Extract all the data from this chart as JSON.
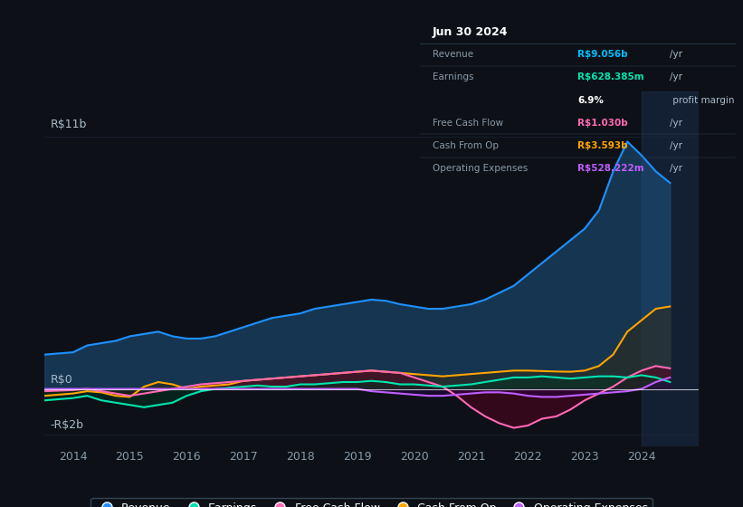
{
  "background_color": "#0d1117",
  "plot_bg_color": "#0d1117",
  "title_box": {
    "date": "Jun 30 2024",
    "display_rows": [
      {
        "label": "Revenue",
        "value": "R$9.056b",
        "unit": "/yr",
        "value_color": "#00bfff"
      },
      {
        "label": "Earnings",
        "value": "R$628.385m",
        "unit": "/yr",
        "value_color": "#00e5b0"
      },
      {
        "label": "",
        "value": "6.9%",
        "unit": " profit margin",
        "value_color": "#ffffff"
      },
      {
        "label": "Free Cash Flow",
        "value": "R$1.030b",
        "unit": "/yr",
        "value_color": "#ff69b4"
      },
      {
        "label": "Cash From Op",
        "value": "R$3.593b",
        "unit": "/yr",
        "value_color": "#ffa500"
      },
      {
        "label": "Operating Expenses",
        "value": "R$528.222m",
        "unit": "/yr",
        "value_color": "#bf5fff"
      }
    ]
  },
  "y_label_top": "R$11b",
  "y_label_zero": "R$0",
  "y_label_bottom": "-R$2b",
  "x_ticks": [
    "2014",
    "2015",
    "2016",
    "2017",
    "2018",
    "2019",
    "2020",
    "2021",
    "2022",
    "2023",
    "2024"
  ],
  "ylim": [
    -2.5,
    13.0
  ],
  "xlim": [
    2013.5,
    2025.0
  ],
  "lines": {
    "revenue": {
      "color": "#1e90ff",
      "fill_color": "#1e5a8a",
      "fill_alpha": 0.5,
      "x": [
        2013.5,
        2014.0,
        2014.25,
        2014.5,
        2014.75,
        2015.0,
        2015.25,
        2015.5,
        2015.75,
        2016.0,
        2016.25,
        2016.5,
        2016.75,
        2017.0,
        2017.25,
        2017.5,
        2017.75,
        2018.0,
        2018.25,
        2018.5,
        2018.75,
        2019.0,
        2019.25,
        2019.5,
        2019.75,
        2020.0,
        2020.25,
        2020.5,
        2020.75,
        2021.0,
        2021.25,
        2021.5,
        2021.75,
        2022.0,
        2022.25,
        2022.5,
        2022.75,
        2023.0,
        2023.25,
        2023.5,
        2023.75,
        2024.0,
        2024.25,
        2024.5
      ],
      "y": [
        1.5,
        1.6,
        1.9,
        2.0,
        2.1,
        2.3,
        2.4,
        2.5,
        2.3,
        2.2,
        2.2,
        2.3,
        2.5,
        2.7,
        2.9,
        3.1,
        3.2,
        3.3,
        3.5,
        3.6,
        3.7,
        3.8,
        3.9,
        3.85,
        3.7,
        3.6,
        3.5,
        3.5,
        3.6,
        3.7,
        3.9,
        4.2,
        4.5,
        5.0,
        5.5,
        6.0,
        6.5,
        7.0,
        7.8,
        9.5,
        10.8,
        10.2,
        9.5,
        9.0
      ]
    },
    "earnings": {
      "color": "#00e5b0",
      "fill_color": "#003322",
      "fill_alpha": 0.5,
      "x": [
        2013.5,
        2014.0,
        2014.25,
        2014.5,
        2014.75,
        2015.0,
        2015.25,
        2015.5,
        2015.75,
        2016.0,
        2016.25,
        2016.5,
        2016.75,
        2017.0,
        2017.25,
        2017.5,
        2017.75,
        2018.0,
        2018.25,
        2018.5,
        2018.75,
        2019.0,
        2019.25,
        2019.5,
        2019.75,
        2020.0,
        2020.25,
        2020.5,
        2020.75,
        2021.0,
        2021.25,
        2021.5,
        2021.75,
        2022.0,
        2022.25,
        2022.5,
        2022.75,
        2023.0,
        2023.25,
        2023.5,
        2023.75,
        2024.0,
        2024.25,
        2024.5
      ],
      "y": [
        -0.5,
        -0.4,
        -0.3,
        -0.5,
        -0.6,
        -0.7,
        -0.8,
        -0.7,
        -0.6,
        -0.3,
        -0.1,
        0.0,
        0.05,
        0.1,
        0.15,
        0.1,
        0.1,
        0.2,
        0.2,
        0.25,
        0.3,
        0.3,
        0.35,
        0.3,
        0.2,
        0.2,
        0.15,
        0.1,
        0.15,
        0.2,
        0.3,
        0.4,
        0.5,
        0.5,
        0.55,
        0.5,
        0.45,
        0.5,
        0.55,
        0.55,
        0.5,
        0.6,
        0.5,
        0.3
      ]
    },
    "free_cash_flow": {
      "color": "#ff69b4",
      "fill_color": "#5a0020",
      "fill_alpha": 0.5,
      "x": [
        2013.5,
        2014.0,
        2014.25,
        2014.5,
        2014.75,
        2015.0,
        2015.25,
        2015.5,
        2015.75,
        2016.0,
        2016.25,
        2016.5,
        2016.75,
        2017.0,
        2017.25,
        2017.5,
        2017.75,
        2018.0,
        2018.25,
        2018.5,
        2018.75,
        2019.0,
        2019.25,
        2019.5,
        2019.75,
        2020.0,
        2020.25,
        2020.5,
        2020.75,
        2021.0,
        2021.25,
        2021.5,
        2021.75,
        2022.0,
        2022.25,
        2022.5,
        2022.75,
        2023.0,
        2023.25,
        2023.5,
        2023.75,
        2024.0,
        2024.25,
        2024.5
      ],
      "y": [
        -0.1,
        -0.05,
        0.0,
        -0.1,
        -0.2,
        -0.3,
        -0.2,
        -0.1,
        0.0,
        0.1,
        0.2,
        0.25,
        0.3,
        0.35,
        0.4,
        0.45,
        0.5,
        0.55,
        0.6,
        0.65,
        0.7,
        0.75,
        0.8,
        0.75,
        0.7,
        0.5,
        0.3,
        0.1,
        -0.3,
        -0.8,
        -1.2,
        -1.5,
        -1.7,
        -1.6,
        -1.3,
        -1.2,
        -0.9,
        -0.5,
        -0.2,
        0.1,
        0.5,
        0.8,
        1.0,
        0.9
      ]
    },
    "cash_from_op": {
      "color": "#ffa500",
      "fill_color": "#3a2500",
      "fill_alpha": 0.4,
      "x": [
        2013.5,
        2014.0,
        2014.25,
        2014.5,
        2014.75,
        2015.0,
        2015.25,
        2015.5,
        2015.75,
        2016.0,
        2016.25,
        2016.5,
        2016.75,
        2017.0,
        2017.25,
        2017.5,
        2017.75,
        2018.0,
        2018.25,
        2018.5,
        2018.75,
        2019.0,
        2019.25,
        2019.5,
        2019.75,
        2020.0,
        2020.25,
        2020.5,
        2020.75,
        2021.0,
        2021.25,
        2021.5,
        2021.75,
        2022.0,
        2022.25,
        2022.5,
        2022.75,
        2023.0,
        2023.25,
        2023.5,
        2023.75,
        2024.0,
        2024.25,
        2024.5
      ],
      "y": [
        -0.3,
        -0.2,
        -0.1,
        -0.15,
        -0.3,
        -0.35,
        0.1,
        0.3,
        0.2,
        0.0,
        0.1,
        0.15,
        0.2,
        0.35,
        0.4,
        0.45,
        0.5,
        0.55,
        0.6,
        0.65,
        0.7,
        0.75,
        0.8,
        0.75,
        0.7,
        0.65,
        0.6,
        0.55,
        0.6,
        0.65,
        0.7,
        0.75,
        0.8,
        0.8,
        0.78,
        0.76,
        0.75,
        0.8,
        1.0,
        1.5,
        2.5,
        3.0,
        3.5,
        3.6
      ]
    },
    "operating_expenses": {
      "color": "#bf5fff",
      "fill_color": "#2a0050",
      "fill_alpha": 0.4,
      "x": [
        2013.5,
        2014.0,
        2014.25,
        2014.5,
        2014.75,
        2015.0,
        2015.25,
        2015.5,
        2015.75,
        2016.0,
        2016.25,
        2016.5,
        2016.75,
        2017.0,
        2017.25,
        2017.5,
        2017.75,
        2018.0,
        2018.25,
        2018.5,
        2018.75,
        2019.0,
        2019.25,
        2019.5,
        2019.75,
        2020.0,
        2020.25,
        2020.5,
        2020.75,
        2021.0,
        2021.25,
        2021.5,
        2021.75,
        2022.0,
        2022.25,
        2022.5,
        2022.75,
        2023.0,
        2023.25,
        2023.5,
        2023.75,
        2024.0,
        2024.25,
        2024.5
      ],
      "y": [
        0.0,
        0.0,
        0.0,
        0.0,
        0.0,
        0.0,
        0.0,
        0.0,
        0.0,
        0.0,
        0.0,
        0.0,
        0.0,
        0.0,
        0.0,
        0.0,
        0.0,
        0.0,
        0.0,
        0.0,
        0.0,
        0.0,
        -0.1,
        -0.15,
        -0.2,
        -0.25,
        -0.3,
        -0.3,
        -0.25,
        -0.2,
        -0.15,
        -0.15,
        -0.2,
        -0.3,
        -0.35,
        -0.35,
        -0.3,
        -0.25,
        -0.2,
        -0.15,
        -0.1,
        0.0,
        0.3,
        0.5
      ]
    }
  },
  "draw_order": [
    "revenue",
    "cash_from_op",
    "free_cash_flow",
    "earnings",
    "operating_expenses"
  ],
  "legend": [
    {
      "label": "Revenue",
      "color": "#1e90ff"
    },
    {
      "label": "Earnings",
      "color": "#00e5b0"
    },
    {
      "label": "Free Cash Flow",
      "color": "#ff69b4"
    },
    {
      "label": "Cash From Op",
      "color": "#ffa500"
    },
    {
      "label": "Operating Expenses",
      "color": "#bf5fff"
    }
  ],
  "zero_line_color": "#ffffff",
  "grid_color": "#1e2a3a",
  "tick_color": "#8899aa",
  "text_color": "#aabbcc",
  "highlight_span": [
    2024.0,
    2025.0
  ],
  "highlight_color": "#1a3050",
  "highlight_alpha": 0.5
}
